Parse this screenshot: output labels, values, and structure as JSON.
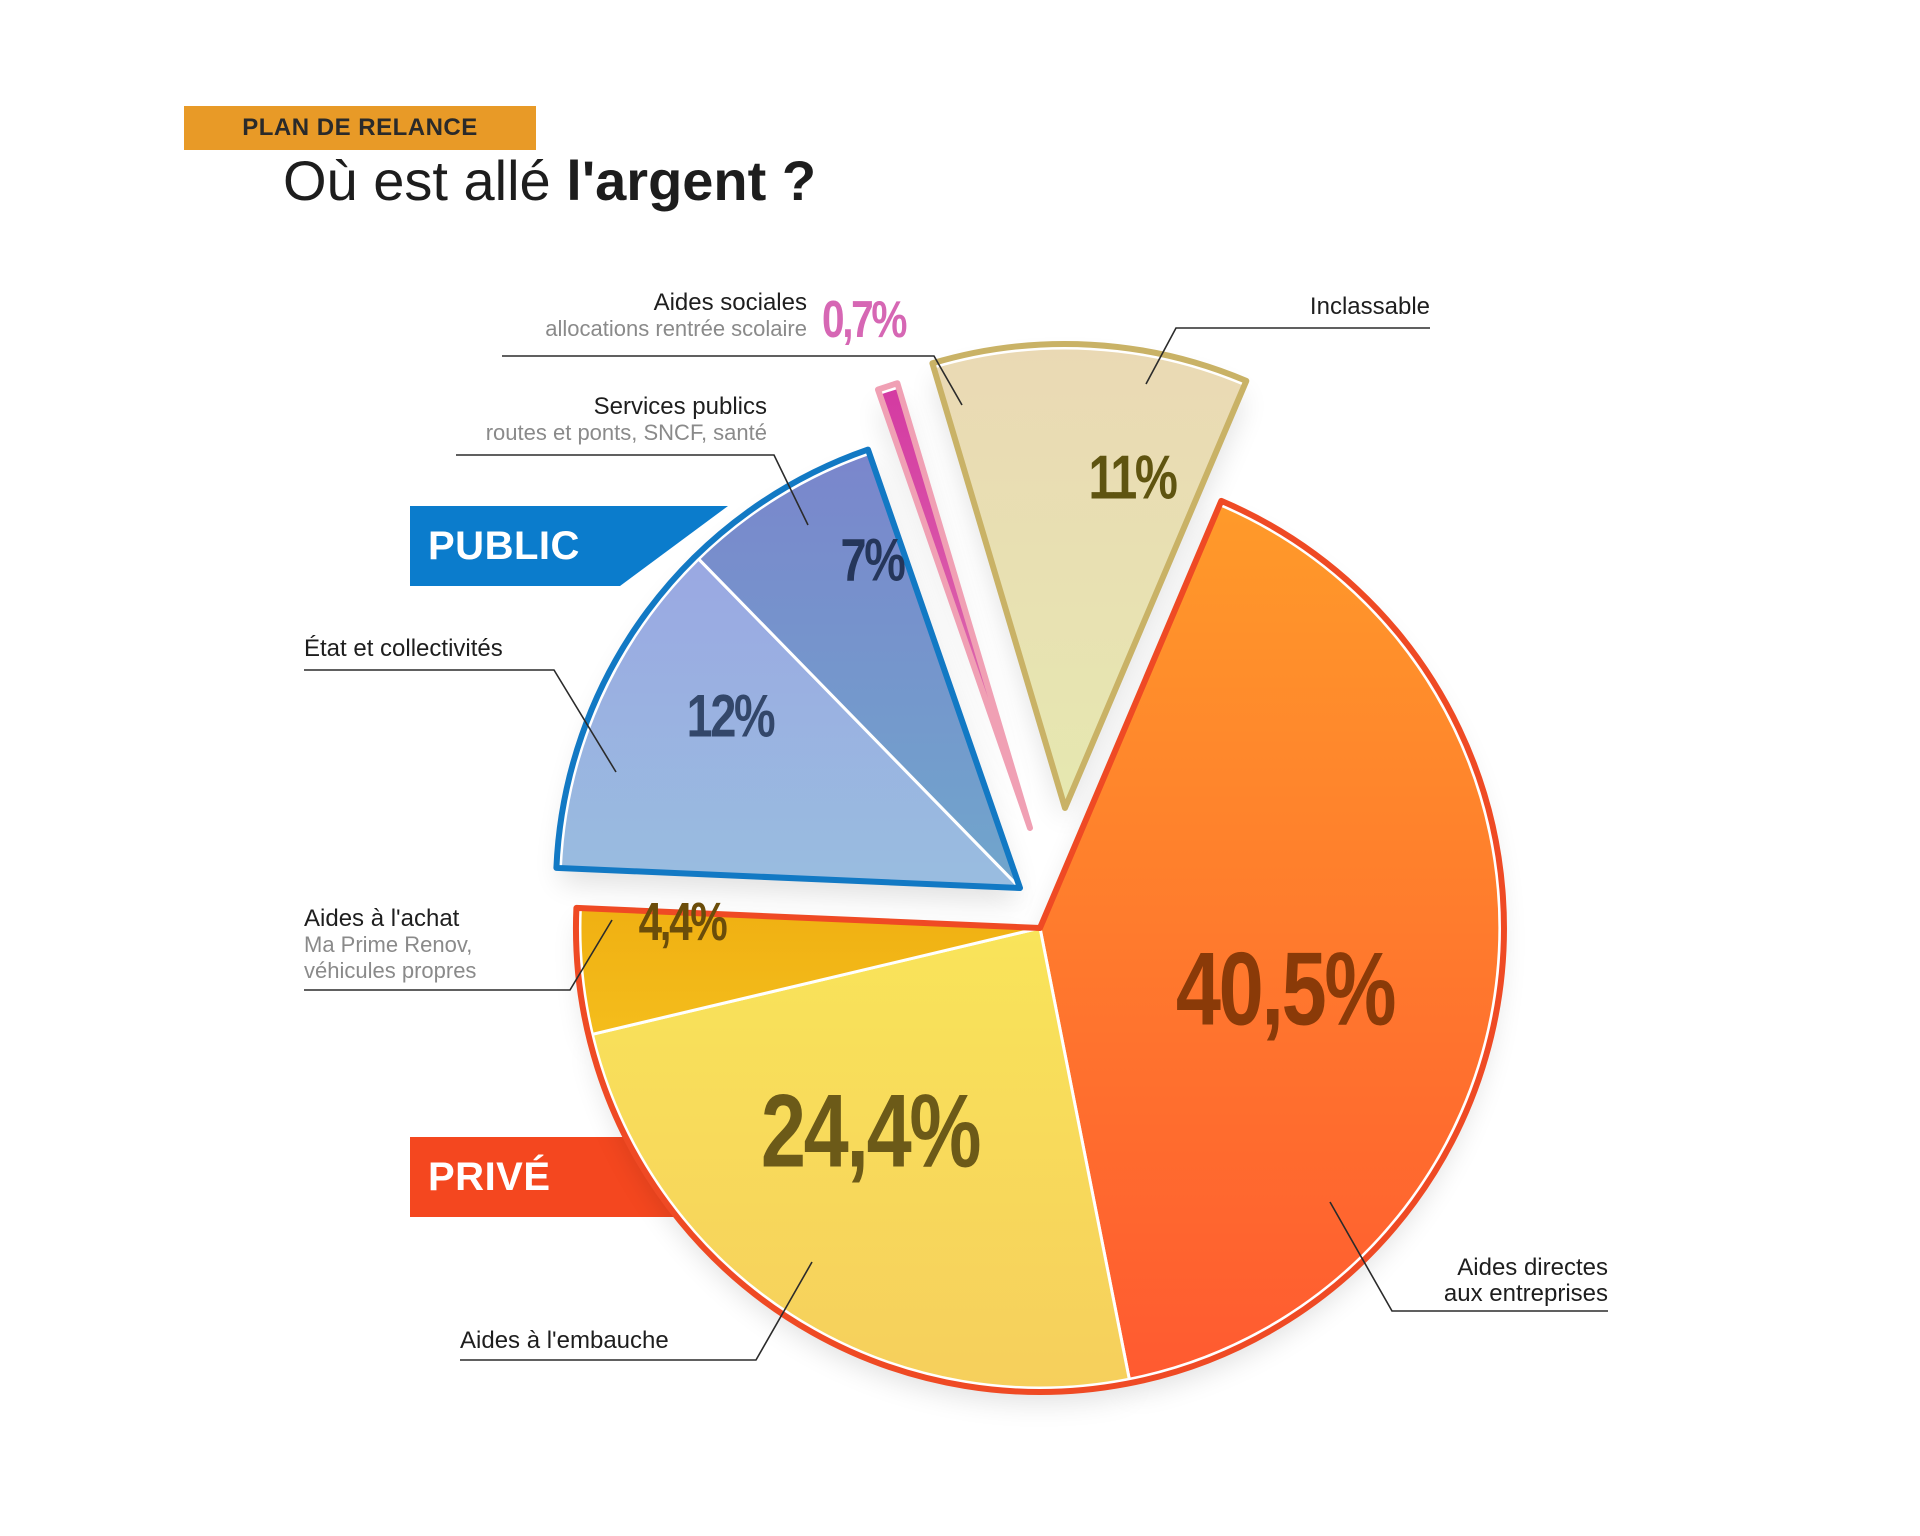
{
  "header": {
    "tag": "PLAN DE RELANCE",
    "title_regular": "Où est allé ",
    "title_bold": "l'argent ?"
  },
  "colors": {
    "tag_bg": "#e89a27",
    "public": "#0b7ccc",
    "prive": "#f4471f",
    "pink": "#d667b4"
  },
  "groups": {
    "public": "PUBLIC",
    "prive": "PRIVÉ"
  },
  "chart_data": {
    "type": "pie",
    "title": "Où est allé l'argent ?",
    "unit": "%",
    "slices": [
      {
        "label": "Aides directes aux entreprises",
        "value": 40.5,
        "display": "40,5%",
        "group": "PRIVÉ",
        "color": "#ff7a30"
      },
      {
        "label": "Aides à l'embauche",
        "value": 24.4,
        "display": "24,4%",
        "group": "PRIVÉ",
        "color": "#f7d756"
      },
      {
        "label": "Aides à l'achat",
        "sublabel": "Ma Prime Renov, véhicules propres",
        "value": 4.4,
        "display": "4,4%",
        "group": "PRIVÉ",
        "color": "#f2b516"
      },
      {
        "label": "État et collectivités",
        "value": 12,
        "display": "12%",
        "group": "PUBLIC",
        "color": "#9ab6e2"
      },
      {
        "label": "Services publics",
        "sublabel": "routes et ponts, SNCF, santé",
        "value": 7,
        "display": "7%",
        "group": "PUBLIC",
        "color": "#7896cc"
      },
      {
        "label": "Aides sociales",
        "sublabel": "allocations rentrée scolaire",
        "value": 0.7,
        "display": "0,7%",
        "group": "",
        "color": "#d43aa2"
      },
      {
        "label": "Inclassable",
        "value": 11,
        "display": "11%",
        "group": "",
        "color": "#e6e0ae"
      }
    ]
  },
  "notes": {
    "aides_sociales": {
      "title": "Aides sociales",
      "sub": "allocations rentrée scolaire"
    },
    "services_publics": {
      "title": "Services publics",
      "sub": "routes et ponts, SNCF, santé"
    },
    "etat": {
      "title": "État et collectivités"
    },
    "aides_achat": {
      "title": "Aides à l'achat",
      "sub1": "Ma Prime Renov,",
      "sub2": "véhicules propres"
    },
    "inclassable": {
      "title": "Inclassable"
    },
    "aides_embauche": {
      "title": "Aides à l'embauche"
    },
    "aides_directes": {
      "line1": "Aides directes",
      "line2": "aux entreprises"
    }
  }
}
